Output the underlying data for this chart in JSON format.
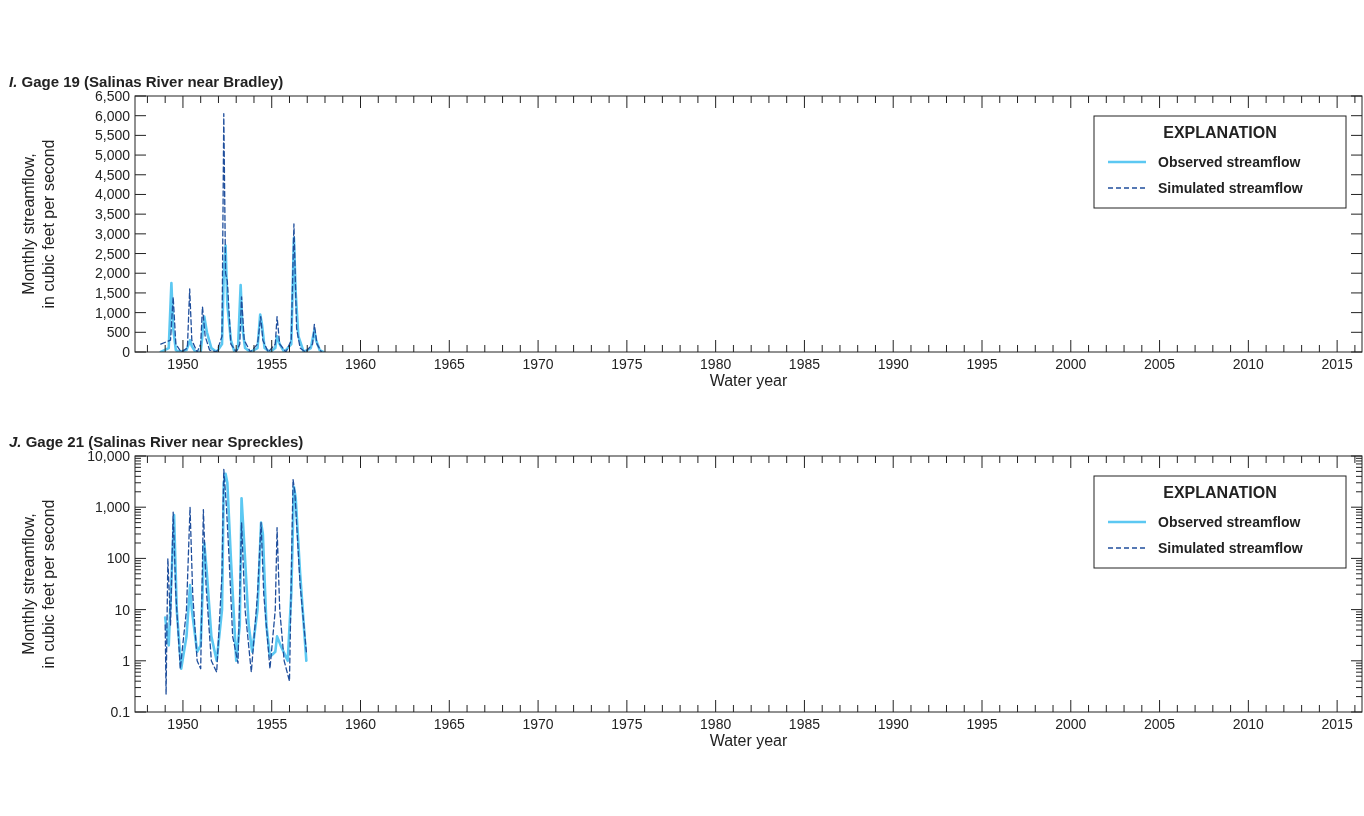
{
  "chart_data": [
    {
      "type": "line",
      "title": "I. Gage 19 (Salinas River near Bradley)",
      "xlabel": "Water year",
      "ylabel": "Monthly streamflow, in cubic feet per second",
      "legend_title": "EXPLANATION",
      "legend": "top right",
      "xlim": [
        1947.3,
        2016.4
      ],
      "xticks": [
        {
          "value": 1948,
          "label": null
        },
        {
          "value": 1949,
          "label": null
        },
        1950,
        {
          "value": 1951,
          "label": null
        },
        {
          "value": 1952,
          "label": null
        },
        {
          "value": 1953,
          "label": null
        },
        {
          "value": 1954,
          "label": null
        },
        1955,
        {
          "value": 1956,
          "label": null
        },
        {
          "value": 1957,
          "label": null
        },
        {
          "value": 1958,
          "label": null
        },
        {
          "value": 1959,
          "label": null
        },
        1960,
        {
          "value": 1961,
          "label": null
        },
        {
          "value": 1962,
          "label": null
        },
        {
          "value": 1963,
          "label": null
        },
        {
          "value": 1964,
          "label": null
        },
        1965,
        {
          "value": 1966,
          "label": null
        },
        {
          "value": 1967,
          "label": null
        },
        {
          "value": 1968,
          "label": null
        },
        {
          "value": 1969,
          "label": null
        },
        1970,
        {
          "value": 1971,
          "label": null
        },
        {
          "value": 1972,
          "label": null
        },
        {
          "value": 1973,
          "label": null
        },
        {
          "value": 1974,
          "label": null
        },
        1975,
        {
          "value": 1976,
          "label": null
        },
        {
          "value": 1977,
          "label": null
        },
        {
          "value": 1978,
          "label": null
        },
        {
          "value": 1979,
          "label": null
        },
        1980,
        {
          "value": 1981,
          "label": null
        },
        {
          "value": 1982,
          "label": null
        },
        {
          "value": 1983,
          "label": null
        },
        {
          "value": 1984,
          "label": null
        },
        1985,
        {
          "value": 1986,
          "label": null
        },
        {
          "value": 1987,
          "label": null
        },
        {
          "value": 1988,
          "label": null
        },
        {
          "value": 1989,
          "label": null
        },
        1990,
        {
          "value": 1991,
          "label": null
        },
        {
          "value": 1992,
          "label": null
        },
        {
          "value": 1993,
          "label": null
        },
        {
          "value": 1994,
          "label": null
        },
        1995,
        {
          "value": 1996,
          "label": null
        },
        {
          "value": 1997,
          "label": null
        },
        {
          "value": 1998,
          "label": null
        },
        {
          "value": 1999,
          "label": null
        },
        2000,
        {
          "value": 2001,
          "label": null
        },
        {
          "value": 2002,
          "label": null
        },
        {
          "value": 2003,
          "label": null
        },
        {
          "value": 2004,
          "label": null
        },
        2005,
        {
          "value": 2006,
          "label": null
        },
        {
          "value": 2007,
          "label": null
        },
        {
          "value": 2008,
          "label": null
        },
        {
          "value": 2009,
          "label": null
        },
        2010,
        {
          "value": 2011,
          "label": null
        },
        {
          "value": 2012,
          "label": null
        },
        {
          "value": 2013,
          "label": null
        },
        {
          "value": 2014,
          "label": null
        },
        2015,
        {
          "value": 2016,
          "label": null
        }
      ],
      "ylim": [
        0,
        6500
      ],
      "yticks": [
        0,
        500,
        {
          "value": 1000,
          "label": "1,000"
        },
        {
          "value": 1500,
          "label": "1,500"
        },
        {
          "value": 2000,
          "label": "2,000"
        },
        {
          "value": 2500,
          "label": "2,500"
        },
        {
          "value": 3000,
          "label": "3,000"
        },
        {
          "value": 3500,
          "label": "3,500"
        },
        {
          "value": 4000,
          "label": "4,000"
        },
        {
          "value": 4500,
          "label": "4,500"
        },
        {
          "value": 5000,
          "label": "5,000"
        },
        {
          "value": 5500,
          "label": "5,500"
        },
        {
          "value": 6000,
          "label": "6,000"
        },
        {
          "value": 6500,
          "label": "6,500"
        }
      ],
      "series": [
        {
          "name": "Observed streamflow",
          "color": "#5cc8f2",
          "line_style": "solid",
          "x": [
            1948.75,
            1949.2,
            1949.35,
            1949.45,
            1949.6,
            1949.8,
            1950.2,
            1950.4,
            1950.5,
            1950.7,
            1951.0,
            1951.2,
            1951.35,
            1951.6,
            1951.9,
            1952.2,
            1952.3,
            1952.4,
            1952.5,
            1952.7,
            1952.9,
            1953.1,
            1953.25,
            1953.35,
            1953.5,
            1953.8,
            1954.2,
            1954.35,
            1954.45,
            1954.6,
            1954.9,
            1955.2,
            1955.3,
            1955.45,
            1955.7,
            1956.1,
            1956.25,
            1956.35,
            1956.5,
            1956.8,
            1957.2,
            1957.4,
            1957.5,
            1957.7,
            1957.9
          ],
          "values": [
            0,
            100,
            1750,
            600,
            50,
            0,
            50,
            300,
            150,
            0,
            0,
            900,
            500,
            100,
            0,
            200,
            2000,
            2700,
            1200,
            300,
            0,
            100,
            1700,
            600,
            100,
            0,
            100,
            950,
            700,
            100,
            0,
            100,
            400,
            200,
            0,
            200,
            2900,
            1500,
            400,
            0,
            100,
            550,
            300,
            50,
            0
          ]
        },
        {
          "name": "Simulated streamflow",
          "color": "#1f4e9c",
          "line_style": "dashed",
          "x": [
            1948.75,
            1949.3,
            1949.45,
            1949.6,
            1949.9,
            1950.25,
            1950.38,
            1950.5,
            1950.8,
            1951.0,
            1951.1,
            1951.25,
            1951.5,
            1951.9,
            1952.2,
            1952.3,
            1952.4,
            1952.5,
            1952.7,
            1953.0,
            1953.2,
            1953.3,
            1953.45,
            1953.8,
            1954.2,
            1954.38,
            1954.5,
            1954.8,
            1955.2,
            1955.3,
            1955.45,
            1955.8,
            1956.1,
            1956.25,
            1956.4,
            1956.6,
            1956.9,
            1957.3,
            1957.4,
            1957.55,
            1957.8
          ],
          "values": [
            200,
            300,
            1400,
            200,
            0,
            100,
            1600,
            300,
            0,
            200,
            1150,
            400,
            50,
            0,
            400,
            6050,
            2000,
            1800,
            200,
            0,
            200,
            1400,
            300,
            0,
            200,
            900,
            300,
            0,
            200,
            900,
            200,
            0,
            300,
            3250,
            600,
            100,
            0,
            200,
            700,
            200,
            0
          ]
        }
      ]
    },
    {
      "type": "line",
      "title": "J. Gage 21 (Salinas River near Spreckles)",
      "xlabel": "Water year",
      "ylabel": "Monthly streamflow, in cubic feet per second",
      "legend_title": "EXPLANATION",
      "legend": "top right",
      "log": true,
      "xlim": [
        1947.3,
        2016.4
      ],
      "xticks": [
        {
          "value": 1948,
          "label": null
        },
        {
          "value": 1949,
          "label": null
        },
        1950,
        {
          "value": 1951,
          "label": null
        },
        {
          "value": 1952,
          "label": null
        },
        {
          "value": 1953,
          "label": null
        },
        {
          "value": 1954,
          "label": null
        },
        1955,
        {
          "value": 1956,
          "label": null
        },
        {
          "value": 1957,
          "label": null
        },
        {
          "value": 1958,
          "label": null
        },
        {
          "value": 1959,
          "label": null
        },
        1960,
        {
          "value": 1961,
          "label": null
        },
        {
          "value": 1962,
          "label": null
        },
        {
          "value": 1963,
          "label": null
        },
        {
          "value": 1964,
          "label": null
        },
        1965,
        {
          "value": 1966,
          "label": null
        },
        {
          "value": 1967,
          "label": null
        },
        {
          "value": 1968,
          "label": null
        },
        {
          "value": 1969,
          "label": null
        },
        1970,
        {
          "value": 1971,
          "label": null
        },
        {
          "value": 1972,
          "label": null
        },
        {
          "value": 1973,
          "label": null
        },
        {
          "value": 1974,
          "label": null
        },
        1975,
        {
          "value": 1976,
          "label": null
        },
        {
          "value": 1977,
          "label": null
        },
        {
          "value": 1978,
          "label": null
        },
        {
          "value": 1979,
          "label": null
        },
        1980,
        {
          "value": 1981,
          "label": null
        },
        {
          "value": 1982,
          "label": null
        },
        {
          "value": 1983,
          "label": null
        },
        {
          "value": 1984,
          "label": null
        },
        1985,
        {
          "value": 1986,
          "label": null
        },
        {
          "value": 1987,
          "label": null
        },
        {
          "value": 1988,
          "label": null
        },
        {
          "value": 1989,
          "label": null
        },
        1990,
        {
          "value": 1991,
          "label": null
        },
        {
          "value": 1992,
          "label": null
        },
        {
          "value": 1993,
          "label": null
        },
        {
          "value": 1994,
          "label": null
        },
        1995,
        {
          "value": 1996,
          "label": null
        },
        {
          "value": 1997,
          "label": null
        },
        {
          "value": 1998,
          "label": null
        },
        {
          "value": 1999,
          "label": null
        },
        2000,
        {
          "value": 2001,
          "label": null
        },
        {
          "value": 2002,
          "label": null
        },
        {
          "value": 2003,
          "label": null
        },
        {
          "value": 2004,
          "label": null
        },
        2005,
        {
          "value": 2006,
          "label": null
        },
        {
          "value": 2007,
          "label": null
        },
        {
          "value": 2008,
          "label": null
        },
        {
          "value": 2009,
          "label": null
        },
        2010,
        {
          "value": 2011,
          "label": null
        },
        {
          "value": 2012,
          "label": null
        },
        {
          "value": 2013,
          "label": null
        },
        {
          "value": 2014,
          "label": null
        },
        2015,
        {
          "value": 2016,
          "label": null
        }
      ],
      "ylim": [
        0.1,
        10000
      ],
      "yticks": [
        0.1,
        {
          "value": 0.2,
          "label": null
        },
        {
          "value": 0.3,
          "label": null
        },
        {
          "value": 0.4,
          "label": null
        },
        {
          "value": 0.5,
          "label": null
        },
        {
          "value": 0.6,
          "label": null
        },
        {
          "value": 0.7,
          "label": null
        },
        {
          "value": 0.8,
          "label": null
        },
        {
          "value": 0.9,
          "label": null
        },
        1,
        {
          "value": 2,
          "label": null
        },
        {
          "value": 3,
          "label": null
        },
        {
          "value": 4,
          "label": null
        },
        {
          "value": 5,
          "label": null
        },
        {
          "value": 6,
          "label": null
        },
        {
          "value": 7,
          "label": null
        },
        {
          "value": 8,
          "label": null
        },
        {
          "value": 9,
          "label": null
        },
        10,
        {
          "value": 20,
          "label": null
        },
        {
          "value": 30,
          "label": null
        },
        {
          "value": 40,
          "label": null
        },
        {
          "value": 50,
          "label": null
        },
        {
          "value": 60,
          "label": null
        },
        {
          "value": 70,
          "label": null
        },
        {
          "value": 80,
          "label": null
        },
        {
          "value": 90,
          "label": null
        },
        100,
        {
          "value": 200,
          "label": null
        },
        {
          "value": 300,
          "label": null
        },
        {
          "value": 400,
          "label": null
        },
        {
          "value": 500,
          "label": null
        },
        {
          "value": 600,
          "label": null
        },
        {
          "value": 700,
          "label": null
        },
        {
          "value": 800,
          "label": null
        },
        {
          "value": 900,
          "label": null
        },
        {
          "value": 1000,
          "label": "1,000"
        },
        {
          "value": 2000,
          "label": null
        },
        {
          "value": 3000,
          "label": null
        },
        {
          "value": 4000,
          "label": null
        },
        {
          "value": 5000,
          "label": null
        },
        {
          "value": 6000,
          "label": null
        },
        {
          "value": 7000,
          "label": null
        },
        {
          "value": 8000,
          "label": null
        },
        {
          "value": 9000,
          "label": null
        },
        {
          "value": 10000,
          "label": "10,000"
        }
      ],
      "series": [
        {
          "name": "Observed streamflow",
          "color": "#5cc8f2",
          "line_style": "solid",
          "x": [
            1949.0,
            1949.2,
            1949.4,
            1949.5,
            1949.65,
            1949.9,
            1950.2,
            1950.4,
            1950.5,
            1950.8,
            1951.0,
            1951.2,
            1951.35,
            1951.6,
            1951.9,
            1952.2,
            1952.3,
            1952.4,
            1952.5,
            1952.7,
            1953.0,
            1953.2,
            1953.3,
            1953.45,
            1953.7,
            1953.9,
            1954.2,
            1954.4,
            1954.5,
            1954.7,
            1954.9,
            1955.2,
            1955.3,
            1955.5,
            1955.9,
            1956.1,
            1956.25,
            1956.35,
            1956.6,
            1956.95
          ],
          "values": [
            7,
            2,
            100,
            700,
            10,
            0.7,
            3,
            30,
            10,
            1.5,
            2,
            200,
            50,
            3,
            1,
            10,
            3000,
            4500,
            3000,
            100,
            1,
            5,
            1500,
            200,
            5,
            1.5,
            10,
            500,
            300,
            5,
            1.2,
            1.5,
            3,
            2,
            1,
            20,
            2500,
            1500,
            50,
            1
          ]
        },
        {
          "name": "Simulated streamflow",
          "color": "#1f4e9c",
          "line_style": "dashed",
          "x": [
            1949.0,
            1949.05,
            1949.15,
            1949.3,
            1949.45,
            1949.6,
            1949.85,
            1950.2,
            1950.4,
            1950.55,
            1950.8,
            1951.0,
            1951.15,
            1951.3,
            1951.6,
            1951.9,
            1952.2,
            1952.3,
            1952.45,
            1952.6,
            1952.8,
            1953.1,
            1953.3,
            1953.5,
            1953.85,
            1954.2,
            1954.4,
            1954.55,
            1954.9,
            1955.2,
            1955.3,
            1955.45,
            1955.7,
            1956.0,
            1956.2,
            1956.3,
            1956.6,
            1956.95
          ],
          "values": [
            5,
            0.22,
            100,
            5,
            800,
            20,
            0.7,
            10,
            1000,
            20,
            1,
            0.7,
            900,
            30,
            1,
            0.6,
            50,
            5500,
            1000,
            100,
            3,
            0.9,
            500,
            10,
            0.6,
            20,
            500,
            20,
            0.7,
            10,
            400,
            10,
            1,
            0.4,
            3500,
            2000,
            30,
            1.5
          ]
        }
      ]
    }
  ]
}
